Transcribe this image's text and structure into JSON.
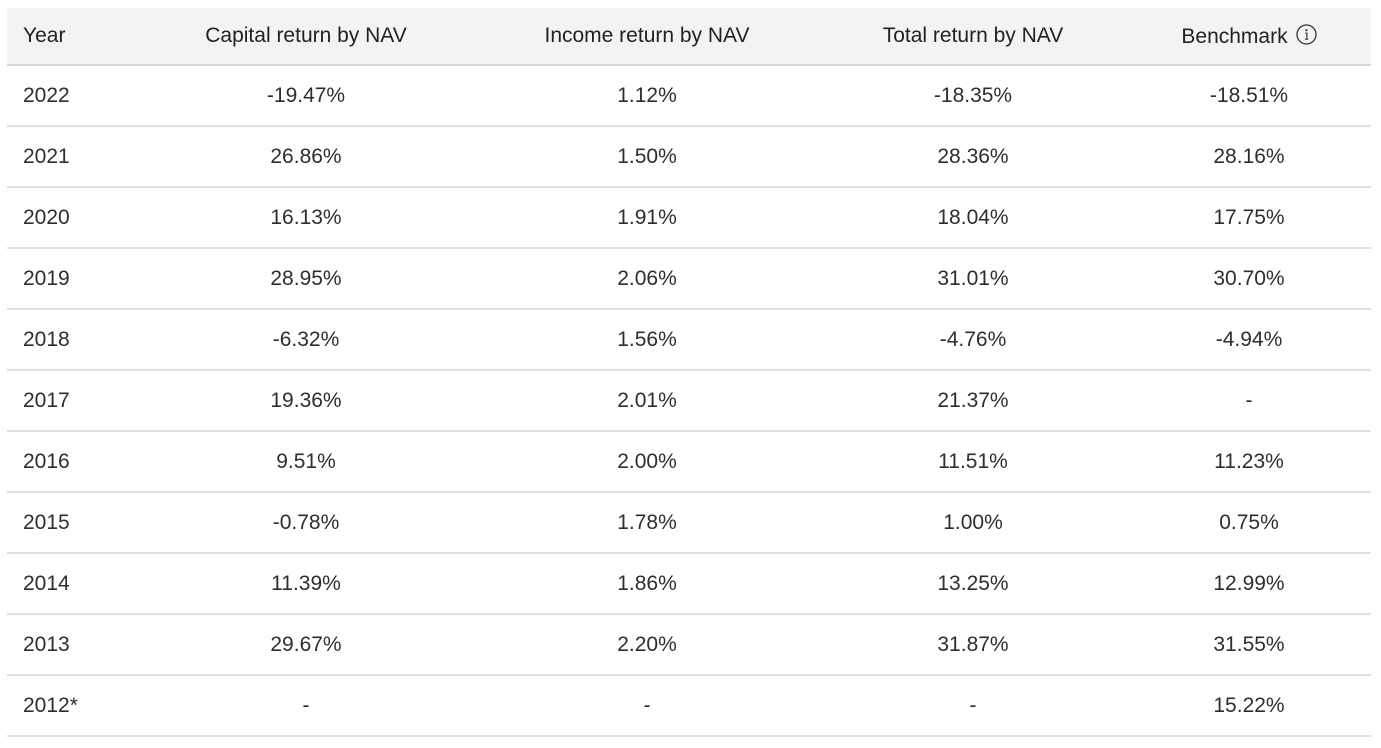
{
  "table": {
    "headers": {
      "year": "Year",
      "capital": "Capital return by NAV",
      "income": "Income return by NAV",
      "total": "Total return by NAV",
      "benchmark": "Benchmark"
    },
    "benchmark_info_icon": "info-circle-icon",
    "rows": [
      {
        "year": "2022",
        "capital": "-19.47%",
        "income": "1.12%",
        "total": "-18.35%",
        "benchmark": "-18.51%"
      },
      {
        "year": "2021",
        "capital": "26.86%",
        "income": "1.50%",
        "total": "28.36%",
        "benchmark": "28.16%"
      },
      {
        "year": "2020",
        "capital": "16.13%",
        "income": "1.91%",
        "total": "18.04%",
        "benchmark": "17.75%"
      },
      {
        "year": "2019",
        "capital": "28.95%",
        "income": "2.06%",
        "total": "31.01%",
        "benchmark": "30.70%"
      },
      {
        "year": "2018",
        "capital": "-6.32%",
        "income": "1.56%",
        "total": "-4.76%",
        "benchmark": "-4.94%"
      },
      {
        "year": "2017",
        "capital": "19.36%",
        "income": "2.01%",
        "total": "21.37%",
        "benchmark": "-"
      },
      {
        "year": "2016",
        "capital": "9.51%",
        "income": "2.00%",
        "total": "11.51%",
        "benchmark": "11.23%"
      },
      {
        "year": "2015",
        "capital": "-0.78%",
        "income": "1.78%",
        "total": "1.00%",
        "benchmark": "0.75%"
      },
      {
        "year": "2014",
        "capital": "11.39%",
        "income": "1.86%",
        "total": "13.25%",
        "benchmark": "12.99%"
      },
      {
        "year": "2013",
        "capital": "29.67%",
        "income": "2.20%",
        "total": "31.87%",
        "benchmark": "31.55%"
      },
      {
        "year": "2012*",
        "capital": "-",
        "income": "-",
        "total": "-",
        "benchmark": "15.22%"
      }
    ]
  },
  "colors": {
    "header_bg": "#f3f3f3",
    "row_divider": "#e1e1e1",
    "text": "#2e2e2e"
  }
}
